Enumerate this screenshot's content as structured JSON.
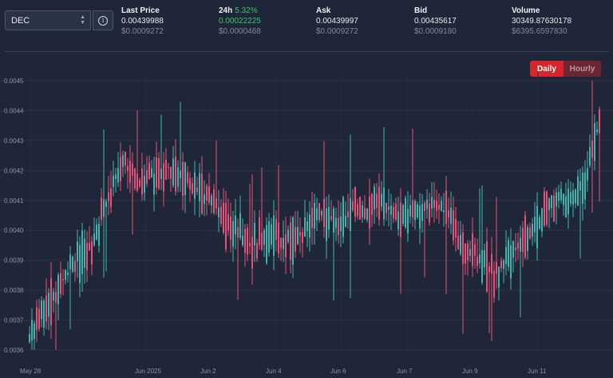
{
  "selector": {
    "token": "DEC"
  },
  "stats": [
    {
      "key": "last",
      "label": "Last Price",
      "pct": "",
      "value": "0.00439988",
      "sub": "$0.0009272"
    },
    {
      "key": "h24",
      "label": "24h",
      "pct": "5.32%",
      "value": "0.00022225",
      "sub": "$0.0000468"
    },
    {
      "key": "ask",
      "label": "Ask",
      "pct": "",
      "value": "0.00439997",
      "sub": "$0.0009272"
    },
    {
      "key": "bid",
      "label": "Bid",
      "pct": "",
      "value": "0.00435617",
      "sub": "$0.0009180"
    },
    {
      "key": "vol",
      "label": "Volume",
      "pct": "",
      "value": "30349.87630178",
      "sub": "$6395.6597830"
    }
  ],
  "toggle": {
    "daily": "Daily",
    "hourly": "Hourly",
    "active": "Daily"
  },
  "colors": {
    "up": "#3fb5ad",
    "down": "#e8517a",
    "positive_text": "#37c76b",
    "accent": "#d6252b"
  },
  "chart_data": {
    "type": "candlestick",
    "yticks": [
      "0.0045",
      "0.0044",
      "0.0043",
      "0.0042",
      "0.0041",
      "0.0040",
      "0.0039",
      "0.0038",
      "0.0037",
      "0.0036"
    ],
    "ylim": [
      0.0036,
      0.0045
    ],
    "xticks": [
      "May 28",
      "Jun 2025",
      "Jun 2",
      "Jun 4",
      "Jun 6",
      "Jun 7",
      "Jun 9",
      "Jun 11"
    ],
    "grid": true,
    "series": [
      {
        "x": 0,
        "close": 0.003635
      },
      {
        "x": 1,
        "close": 0.00373
      },
      {
        "x": 2,
        "close": 0.00382
      },
      {
        "x": 3,
        "close": 0.0039
      },
      {
        "x": 4,
        "close": 0.00394
      },
      {
        "x": 5,
        "close": 0.00409
      },
      {
        "x": 6,
        "close": 0.00424
      },
      {
        "x": 7,
        "close": 0.00416
      },
      {
        "x": 8,
        "close": 0.00418
      },
      {
        "x": 9,
        "close": 0.00421
      },
      {
        "x": 10,
        "close": 0.00418
      },
      {
        "x": 11,
        "close": 0.00413
      },
      {
        "x": 12,
        "close": 0.00408
      },
      {
        "x": 13,
        "close": 0.00401
      },
      {
        "x": 14,
        "close": 0.00396
      },
      {
        "x": 15,
        "close": 0.00395
      },
      {
        "x": 16,
        "close": 0.00397
      },
      {
        "x": 17,
        "close": 0.00396
      },
      {
        "x": 18,
        "close": 0.00401
      },
      {
        "x": 19,
        "close": 0.00406
      },
      {
        "x": 20,
        "close": 0.00402
      },
      {
        "x": 21,
        "close": 0.00408
      },
      {
        "x": 22,
        "close": 0.00406
      },
      {
        "x": 23,
        "close": 0.00409
      },
      {
        "x": 24,
        "close": 0.00404
      },
      {
        "x": 25,
        "close": 0.00407
      },
      {
        "x": 26,
        "close": 0.00408
      },
      {
        "x": 27,
        "close": 0.00406
      },
      {
        "x": 28,
        "close": 0.00395
      },
      {
        "x": 29,
        "close": 0.00391
      },
      {
        "x": 30,
        "close": 0.00385
      },
      {
        "x": 31,
        "close": 0.00391
      },
      {
        "x": 32,
        "close": 0.00396
      },
      {
        "x": 33,
        "close": 0.00402
      },
      {
        "x": 34,
        "close": 0.00411
      },
      {
        "x": 35,
        "close": 0.00411
      },
      {
        "x": 36,
        "close": 0.00416
      },
      {
        "x": 37,
        "close": 0.00439
      }
    ]
  }
}
